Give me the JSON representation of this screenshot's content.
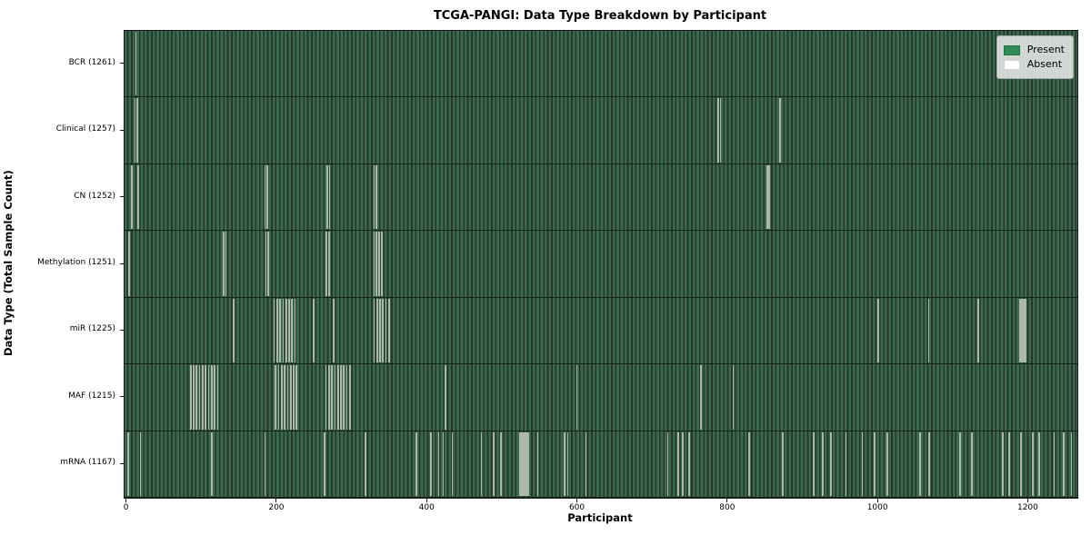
{
  "title": "TCGA-PANGI: Data Type Breakdown by Participant",
  "xlabel": "Participant",
  "ylabel": "Data Type (Total Sample Count)",
  "legend": {
    "items": [
      {
        "label": "Present",
        "color": "#2e8b57"
      },
      {
        "label": "Absent",
        "color": "#ffffff"
      }
    ]
  },
  "chart_data": {
    "type": "heatmap",
    "title": "TCGA-PANGI: Data Type Breakdown by Participant",
    "xlabel": "Participant",
    "ylabel": "Data Type (Total Sample Count)",
    "legend_entries": [
      "Present",
      "Absent"
    ],
    "legend_position": "upper right",
    "x_ticks": [
      0,
      200,
      400,
      600,
      800,
      1000,
      1200
    ],
    "x_domain": [
      -2,
      1266
    ],
    "grid": false,
    "colors": {
      "present_fill": "#2e6b47",
      "present_stripe_light": "#3c684e",
      "present_stripe_dark": "#23392c",
      "absent_fill": "#adb7ab",
      "legend_present": "#2e8b57",
      "legend_absent": "#ffffff",
      "row_edge": "#15241b"
    },
    "rows": [
      {
        "label": "BCR",
        "count": 1261,
        "absent": [
          13
        ]
      },
      {
        "label": "Clinical",
        "count": 1257,
        "absent": [
          12,
          15,
          788,
          791,
          870
        ]
      },
      {
        "label": "CN",
        "count": 1252,
        "absent": [
          8,
          16,
          185,
          188,
          268,
          271,
          330,
          333,
          853,
          856
        ]
      },
      {
        "label": "Methylation",
        "count": 1251,
        "absent": [
          4,
          130,
          133,
          186,
          189,
          267,
          270,
          330,
          333,
          337,
          340
        ]
      },
      {
        "label": "miR",
        "count": 1225,
        "absent": [
          143,
          197,
          201,
          205,
          209,
          213,
          217,
          221,
          225,
          250,
          276,
          330,
          334,
          338,
          342,
          346,
          350,
          1001,
          1068,
          1134,
          [
            1189,
            1198
          ]
        ]
      },
      {
        "label": "MAF",
        "count": 1215,
        "absent": [
          86,
          90,
          94,
          98,
          102,
          106,
          110,
          114,
          118,
          122,
          199,
          203,
          207,
          211,
          215,
          219,
          223,
          227,
          266,
          270,
          274,
          278,
          282,
          286,
          290,
          294,
          298,
          425,
          600,
          765,
          808
        ]
      },
      {
        "label": "mRNA",
        "count": 1167,
        "absent": [
          3,
          19,
          114,
          185,
          264,
          319,
          386,
          406,
          416,
          422,
          434,
          473,
          489,
          499,
          [
            523,
            537
          ],
          548,
          584,
          588,
          612,
          721,
          735,
          741,
          749,
          829,
          874,
          915,
          927,
          938,
          958,
          980,
          996,
          1013,
          1057,
          1069,
          1110,
          1126,
          1167,
          1175,
          1191,
          1207,
          1215,
          1235,
          1248,
          1258
        ]
      }
    ]
  }
}
